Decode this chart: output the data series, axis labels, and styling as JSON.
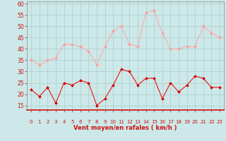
{
  "hours": [
    0,
    1,
    2,
    3,
    4,
    5,
    6,
    7,
    8,
    9,
    10,
    11,
    12,
    13,
    14,
    15,
    16,
    17,
    18,
    19,
    20,
    21,
    22,
    23
  ],
  "wind_avg": [
    22,
    19,
    23,
    16,
    25,
    24,
    26,
    25,
    15,
    18,
    24,
    31,
    30,
    24,
    27,
    27,
    18,
    25,
    21,
    24,
    28,
    27,
    23,
    23
  ],
  "wind_gust": [
    35,
    33,
    35,
    36,
    42,
    42,
    41,
    39,
    33,
    41,
    48,
    50,
    42,
    41,
    56,
    57,
    47,
    40,
    40,
    41,
    41,
    50,
    47,
    45
  ],
  "xlabel": "Vent moyen/en rafales ( km/h )",
  "ylim_min": 13,
  "ylim_max": 61,
  "yticks": [
    15,
    20,
    25,
    30,
    35,
    40,
    45,
    50,
    55,
    60
  ],
  "bg_color": "#cce8e8",
  "grid_color": "#aacccc",
  "line_color_avg": "#ee1111",
  "line_color_gust": "#ffaaaa",
  "marker_color_avg": "#cc0000",
  "marker_color_gust": "#ff9999",
  "arrow_color": "#dd3333",
  "xlabel_color": "#cc1111",
  "tick_color": "#cc1111",
  "spine_color": "#cc1111"
}
